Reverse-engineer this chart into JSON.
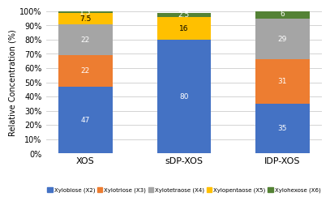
{
  "categories": [
    "XOS",
    "sDP-XOS",
    "IDP-XOS"
  ],
  "series": {
    "Xylobiose (X2)": [
      47,
      80,
      35
    ],
    "Xylotriose (X3)": [
      22,
      0,
      31
    ],
    "Xylotetraose (X4)": [
      22,
      0,
      29
    ],
    "Xylopentaose (X5)": [
      7.5,
      16,
      0
    ],
    "Xylohexose (X6)": [
      1.5,
      2.5,
      6
    ]
  },
  "colors": {
    "Xylobiose (X2)": "#4472C4",
    "Xylotriose (X3)": "#ED7D31",
    "Xylotetraose (X4)": "#A5A5A5",
    "Xylopentaose (X5)": "#FFC000",
    "Xylohexose (X6)": "#548235"
  },
  "text_colors": {
    "Xylobiose (X2)": "#FFFFFF",
    "Xylotriose (X3)": "#FFFFFF",
    "Xylotetraose (X4)": "#FFFFFF",
    "Xylopentaose (X5)": "#000000",
    "Xylohexose (X6)": "#FFFFFF"
  },
  "ylabel": "Relative Concentration (%)",
  "ylim": [
    0,
    100
  ],
  "yticks": [
    0,
    10,
    20,
    30,
    40,
    50,
    60,
    70,
    80,
    90,
    100
  ],
  "ytick_labels": [
    "0%",
    "10%",
    "20%",
    "30%",
    "40%",
    "50%",
    "60%",
    "70%",
    "80%",
    "90%",
    "100%"
  ],
  "bar_width": 0.55,
  "background_color": "#FFFFFF",
  "grid_color": "#CCCCCC",
  "legend_order": [
    "Xylobiose (X2)",
    "Xylotriose (X3)",
    "Xylotetraose (X4)",
    "Xylopentaose (X5)",
    "Xylohexose (X6)"
  ]
}
